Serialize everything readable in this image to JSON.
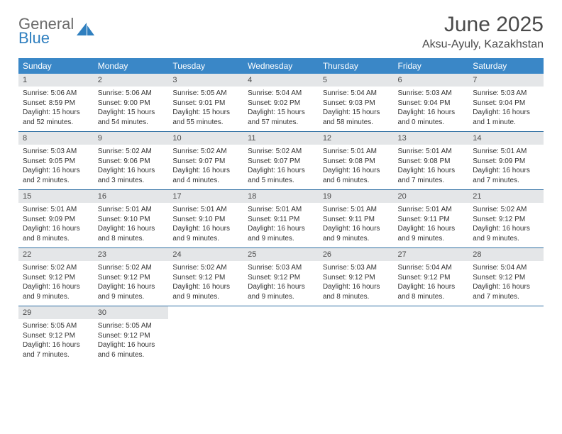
{
  "logo": {
    "line1": "General",
    "line2": "Blue"
  },
  "title": "June 2025",
  "location": "Aksu-Ayuly, Kazakhstan",
  "colors": {
    "header_bg": "#3a87c7",
    "header_text": "#ffffff",
    "daynum_bg": "#e4e6e8",
    "rule": "#2f6fa3",
    "logo_gray": "#6b6b6b",
    "logo_blue": "#2f7fbf"
  },
  "day_headers": [
    "Sunday",
    "Monday",
    "Tuesday",
    "Wednesday",
    "Thursday",
    "Friday",
    "Saturday"
  ],
  "weeks": [
    [
      {
        "n": "1",
        "sr": "Sunrise: 5:06 AM",
        "ss": "Sunset: 8:59 PM",
        "dl": "Daylight: 15 hours and 52 minutes."
      },
      {
        "n": "2",
        "sr": "Sunrise: 5:06 AM",
        "ss": "Sunset: 9:00 PM",
        "dl": "Daylight: 15 hours and 54 minutes."
      },
      {
        "n": "3",
        "sr": "Sunrise: 5:05 AM",
        "ss": "Sunset: 9:01 PM",
        "dl": "Daylight: 15 hours and 55 minutes."
      },
      {
        "n": "4",
        "sr": "Sunrise: 5:04 AM",
        "ss": "Sunset: 9:02 PM",
        "dl": "Daylight: 15 hours and 57 minutes."
      },
      {
        "n": "5",
        "sr": "Sunrise: 5:04 AM",
        "ss": "Sunset: 9:03 PM",
        "dl": "Daylight: 15 hours and 58 minutes."
      },
      {
        "n": "6",
        "sr": "Sunrise: 5:03 AM",
        "ss": "Sunset: 9:04 PM",
        "dl": "Daylight: 16 hours and 0 minutes."
      },
      {
        "n": "7",
        "sr": "Sunrise: 5:03 AM",
        "ss": "Sunset: 9:04 PM",
        "dl": "Daylight: 16 hours and 1 minute."
      }
    ],
    [
      {
        "n": "8",
        "sr": "Sunrise: 5:03 AM",
        "ss": "Sunset: 9:05 PM",
        "dl": "Daylight: 16 hours and 2 minutes."
      },
      {
        "n": "9",
        "sr": "Sunrise: 5:02 AM",
        "ss": "Sunset: 9:06 PM",
        "dl": "Daylight: 16 hours and 3 minutes."
      },
      {
        "n": "10",
        "sr": "Sunrise: 5:02 AM",
        "ss": "Sunset: 9:07 PM",
        "dl": "Daylight: 16 hours and 4 minutes."
      },
      {
        "n": "11",
        "sr": "Sunrise: 5:02 AM",
        "ss": "Sunset: 9:07 PM",
        "dl": "Daylight: 16 hours and 5 minutes."
      },
      {
        "n": "12",
        "sr": "Sunrise: 5:01 AM",
        "ss": "Sunset: 9:08 PM",
        "dl": "Daylight: 16 hours and 6 minutes."
      },
      {
        "n": "13",
        "sr": "Sunrise: 5:01 AM",
        "ss": "Sunset: 9:08 PM",
        "dl": "Daylight: 16 hours and 7 minutes."
      },
      {
        "n": "14",
        "sr": "Sunrise: 5:01 AM",
        "ss": "Sunset: 9:09 PM",
        "dl": "Daylight: 16 hours and 7 minutes."
      }
    ],
    [
      {
        "n": "15",
        "sr": "Sunrise: 5:01 AM",
        "ss": "Sunset: 9:09 PM",
        "dl": "Daylight: 16 hours and 8 minutes."
      },
      {
        "n": "16",
        "sr": "Sunrise: 5:01 AM",
        "ss": "Sunset: 9:10 PM",
        "dl": "Daylight: 16 hours and 8 minutes."
      },
      {
        "n": "17",
        "sr": "Sunrise: 5:01 AM",
        "ss": "Sunset: 9:10 PM",
        "dl": "Daylight: 16 hours and 9 minutes."
      },
      {
        "n": "18",
        "sr": "Sunrise: 5:01 AM",
        "ss": "Sunset: 9:11 PM",
        "dl": "Daylight: 16 hours and 9 minutes."
      },
      {
        "n": "19",
        "sr": "Sunrise: 5:01 AM",
        "ss": "Sunset: 9:11 PM",
        "dl": "Daylight: 16 hours and 9 minutes."
      },
      {
        "n": "20",
        "sr": "Sunrise: 5:01 AM",
        "ss": "Sunset: 9:11 PM",
        "dl": "Daylight: 16 hours and 9 minutes."
      },
      {
        "n": "21",
        "sr": "Sunrise: 5:02 AM",
        "ss": "Sunset: 9:12 PM",
        "dl": "Daylight: 16 hours and 9 minutes."
      }
    ],
    [
      {
        "n": "22",
        "sr": "Sunrise: 5:02 AM",
        "ss": "Sunset: 9:12 PM",
        "dl": "Daylight: 16 hours and 9 minutes."
      },
      {
        "n": "23",
        "sr": "Sunrise: 5:02 AM",
        "ss": "Sunset: 9:12 PM",
        "dl": "Daylight: 16 hours and 9 minutes."
      },
      {
        "n": "24",
        "sr": "Sunrise: 5:02 AM",
        "ss": "Sunset: 9:12 PM",
        "dl": "Daylight: 16 hours and 9 minutes."
      },
      {
        "n": "25",
        "sr": "Sunrise: 5:03 AM",
        "ss": "Sunset: 9:12 PM",
        "dl": "Daylight: 16 hours and 9 minutes."
      },
      {
        "n": "26",
        "sr": "Sunrise: 5:03 AM",
        "ss": "Sunset: 9:12 PM",
        "dl": "Daylight: 16 hours and 8 minutes."
      },
      {
        "n": "27",
        "sr": "Sunrise: 5:04 AM",
        "ss": "Sunset: 9:12 PM",
        "dl": "Daylight: 16 hours and 8 minutes."
      },
      {
        "n": "28",
        "sr": "Sunrise: 5:04 AM",
        "ss": "Sunset: 9:12 PM",
        "dl": "Daylight: 16 hours and 7 minutes."
      }
    ],
    [
      {
        "n": "29",
        "sr": "Sunrise: 5:05 AM",
        "ss": "Sunset: 9:12 PM",
        "dl": "Daylight: 16 hours and 7 minutes."
      },
      {
        "n": "30",
        "sr": "Sunrise: 5:05 AM",
        "ss": "Sunset: 9:12 PM",
        "dl": "Daylight: 16 hours and 6 minutes."
      },
      null,
      null,
      null,
      null,
      null
    ]
  ]
}
